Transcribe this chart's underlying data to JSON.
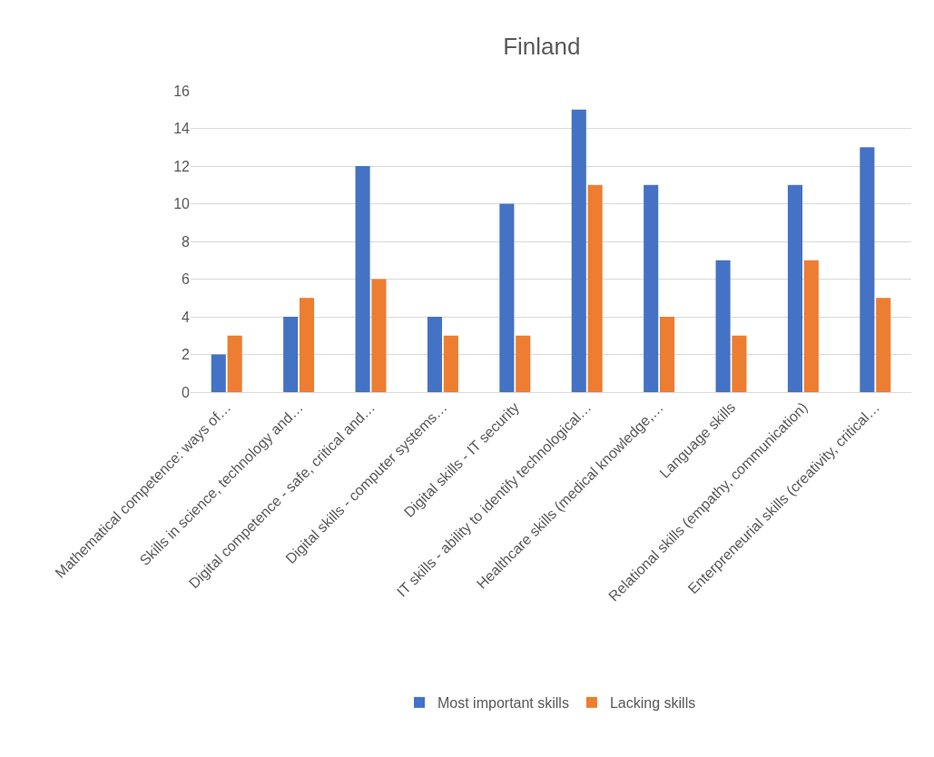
{
  "chart_data": {
    "type": "bar",
    "title": "Finland",
    "categories": [
      "Mathematical competence: ways of…",
      "Skills in science, technology and…",
      "Digital competence - safe, critical and…",
      "Digital skills - computer systems…",
      "Digital skills - IT security",
      "IT skills - ability to identify technological…",
      "Healthcare skills (medical knowledge,…",
      "Language skills",
      "Relational skills (empathy, communication)",
      "Enterpreneurial skills (creativity, critical…"
    ],
    "series": [
      {
        "name": "Most important skills",
        "color": "#4472c4",
        "values": [
          2,
          4,
          12,
          4,
          10,
          15,
          11,
          7,
          11,
          13
        ]
      },
      {
        "name": "Lacking skills",
        "color": "#ed7d31",
        "values": [
          3,
          5,
          6,
          3,
          3,
          11,
          4,
          3,
          7,
          5
        ]
      }
    ],
    "ylim": [
      0,
      16
    ],
    "yticks": [
      0,
      2,
      4,
      6,
      8,
      10,
      12,
      14,
      16
    ],
    "grid": "y",
    "legend": "bottom"
  }
}
